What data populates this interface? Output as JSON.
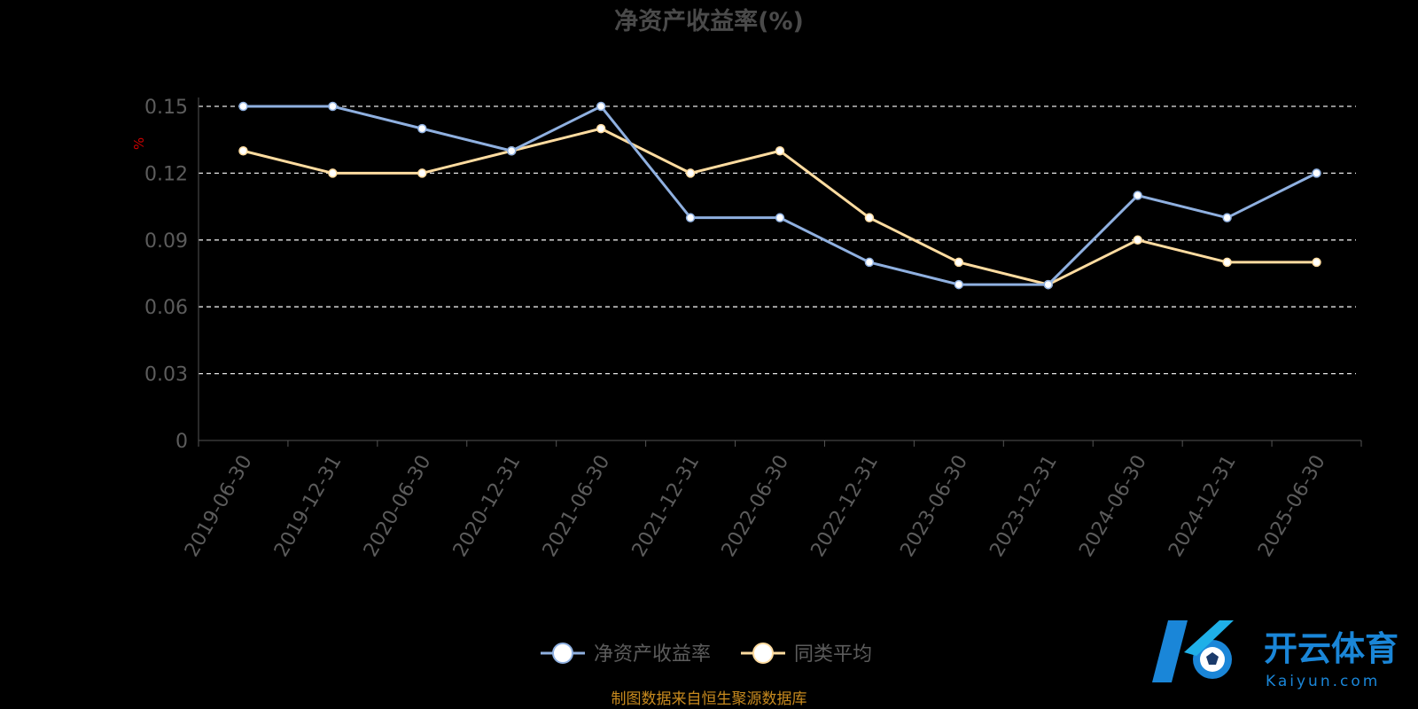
{
  "chart_data": {
    "type": "line",
    "title": "净资产收益率(%)",
    "ylabel": "%",
    "ylim": [
      0,
      0.15
    ],
    "yticks": [
      "0",
      "0.03",
      "0.06",
      "0.09",
      "0.12",
      "0.15"
    ],
    "grid": true,
    "legend_position": "bottom",
    "categories": [
      "2019-06-30",
      "2019-12-31",
      "2020-06-30",
      "2020-12-31",
      "2021-06-30",
      "2021-12-31",
      "2022-06-30",
      "2022-12-31",
      "2023-06-30",
      "2023-12-31",
      "2024-06-30",
      "2024-12-31",
      "2025-06-30"
    ],
    "series": [
      {
        "name": "净资产收益率",
        "color": "#8fb0e0",
        "values": [
          0.15,
          0.15,
          0.14,
          0.13,
          0.15,
          0.1,
          0.1,
          0.08,
          0.07,
          0.07,
          0.11,
          0.1,
          0.12
        ]
      },
      {
        "name": "同类平均",
        "color": "#ffdca0",
        "values": [
          0.13,
          0.12,
          0.12,
          0.13,
          0.14,
          0.12,
          0.13,
          0.1,
          0.08,
          0.07,
          0.09,
          0.08,
          0.08
        ]
      }
    ]
  },
  "source_note": "制图数据来自恒生聚源数据库",
  "watermark": {
    "brand": "开云体育",
    "domain": "Kaiyun.com"
  }
}
